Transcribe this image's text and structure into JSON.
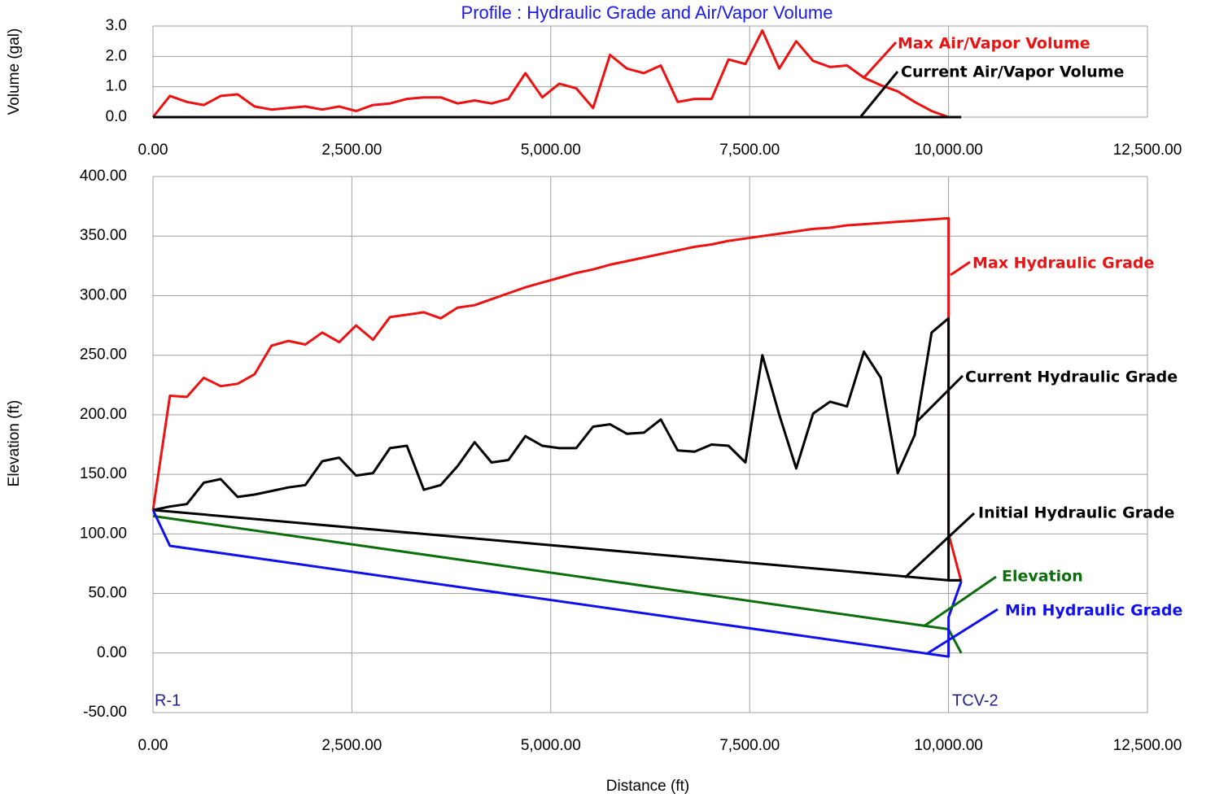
{
  "chart_data": [
    {
      "type": "line",
      "title": "Profile : Hydraulic Grade and Air/Vapor Volume",
      "ylabel": "Volume (gal)",
      "xlim": [
        0,
        12500
      ],
      "ylim": [
        0,
        3
      ],
      "xticks": [
        {
          "value": 0,
          "label": "0.00"
        },
        {
          "value": 2500,
          "label": "2,500.00"
        },
        {
          "value": 5000,
          "label": "5,000.00"
        },
        {
          "value": 7500,
          "label": "7,500.00"
        },
        {
          "value": 10000,
          "label": "10,000.00"
        },
        {
          "value": 12500,
          "label": "12,500.00"
        }
      ],
      "yticks": [
        {
          "value": 0,
          "label": "0.0"
        },
        {
          "value": 1,
          "label": "1.0"
        },
        {
          "value": 2,
          "label": "2.0"
        },
        {
          "value": 3,
          "label": "3.0"
        }
      ],
      "grid": true,
      "series": [
        {
          "name": "Max Air/Vapor Volume",
          "color": "#ee1111",
          "x": [
            0,
            213,
            426,
            638,
            851,
            1064,
            1277,
            1489,
            1702,
            1915,
            2128,
            2340,
            2553,
            2766,
            2979,
            3191,
            3404,
            3617,
            3830,
            4043,
            4255,
            4468,
            4681,
            4894,
            5106,
            5319,
            5532,
            5745,
            5957,
            6170,
            6383,
            6596,
            6809,
            7021,
            7234,
            7447,
            7660,
            7872,
            8085,
            8298,
            8511,
            8723,
            8936,
            9149,
            9362,
            9574,
            9787,
            10000
          ],
          "values": [
            0,
            0.7,
            0.5,
            0.4,
            0.7,
            0.75,
            0.35,
            0.25,
            0.3,
            0.35,
            0.25,
            0.35,
            0.2,
            0.4,
            0.45,
            0.6,
            0.65,
            0.65,
            0.45,
            0.55,
            0.45,
            0.6,
            1.45,
            0.65,
            1.1,
            0.95,
            0.3,
            2.05,
            1.6,
            1.45,
            1.7,
            0.5,
            0.6,
            0.6,
            1.9,
            1.75,
            2.85,
            1.6,
            2.5,
            1.85,
            1.65,
            1.7,
            1.3,
            1.05,
            0.85,
            0.5,
            0.2,
            0
          ]
        },
        {
          "name": "Current Air/Vapor Volume",
          "color": "#000000",
          "x": [
            0,
            10160
          ],
          "values": [
            0,
            0
          ]
        }
      ]
    },
    {
      "type": "line",
      "ylabel": "Elevation (ft)",
      "xlabel": "Distance (ft)",
      "xlim": [
        0,
        12500
      ],
      "ylim": [
        -50,
        400
      ],
      "xticks": [
        {
          "value": 0,
          "label": "0.00"
        },
        {
          "value": 2500,
          "label": "2,500.00"
        },
        {
          "value": 5000,
          "label": "5,000.00"
        },
        {
          "value": 7500,
          "label": "7,500.00"
        },
        {
          "value": 10000,
          "label": "10,000.00"
        },
        {
          "value": 12500,
          "label": "12,500.00"
        }
      ],
      "yticks": [
        {
          "value": -50,
          "label": "-50.00"
        },
        {
          "value": 0,
          "label": "0.00"
        },
        {
          "value": 50,
          "label": "50.00"
        },
        {
          "value": 100,
          "label": "100.00"
        },
        {
          "value": 150,
          "label": "150.00"
        },
        {
          "value": 200,
          "label": "200.00"
        },
        {
          "value": 250,
          "label": "250.00"
        },
        {
          "value": 300,
          "label": "300.00"
        },
        {
          "value": 350,
          "label": "350.00"
        },
        {
          "value": 400,
          "label": "400.00"
        }
      ],
      "grid": true,
      "annotations": [
        "R-1",
        "TCV-2"
      ],
      "series": [
        {
          "name": "Max Hydraulic Grade",
          "color": "#ee1111",
          "x": [
            0,
            213,
            426,
            638,
            851,
            1064,
            1277,
            1489,
            1702,
            1915,
            2128,
            2340,
            2553,
            2766,
            2979,
            3191,
            3404,
            3617,
            3830,
            4043,
            4255,
            4468,
            4681,
            4894,
            5106,
            5319,
            5532,
            5745,
            5957,
            6170,
            6383,
            6596,
            6809,
            7021,
            7234,
            7447,
            7660,
            7872,
            8085,
            8298,
            8511,
            8723,
            8936,
            9149,
            9362,
            9574,
            9787,
            10000,
            10000,
            10160
          ],
          "values": [
            120,
            216,
            215,
            231,
            224,
            226,
            234,
            258,
            262,
            259,
            269,
            261,
            275,
            263,
            282,
            284,
            286,
            281,
            290,
            292,
            297,
            302,
            307,
            311,
            315,
            319,
            322,
            326,
            329,
            332,
            335,
            338,
            341,
            343,
            346,
            348,
            350,
            352,
            354,
            356,
            357,
            359,
            360,
            361,
            362,
            363,
            364,
            365,
            100,
            60
          ]
        },
        {
          "name": "Current Hydraulic Grade",
          "color": "#000000",
          "x": [
            0,
            213,
            426,
            638,
            851,
            1064,
            1277,
            1489,
            1702,
            1915,
            2128,
            2340,
            2553,
            2766,
            2979,
            3191,
            3404,
            3617,
            3830,
            4043,
            4255,
            4468,
            4681,
            4894,
            5106,
            5319,
            5532,
            5745,
            5957,
            6170,
            6383,
            6596,
            6809,
            7021,
            7234,
            7447,
            7660,
            7872,
            8085,
            8298,
            8511,
            8723,
            8936,
            9149,
            9362,
            9574,
            9787,
            10000,
            10000,
            10160
          ],
          "values": [
            120,
            123,
            125,
            143,
            146,
            131,
            133,
            136,
            139,
            141,
            161,
            164,
            149,
            151,
            172,
            174,
            137,
            141,
            157,
            177,
            160,
            162,
            182,
            174,
            172,
            172,
            190,
            192,
            184,
            185,
            196,
            170,
            169,
            175,
            174,
            160,
            250,
            200,
            155,
            201,
            211,
            207,
            253,
            231,
            151,
            183,
            269,
            281,
            61,
            61
          ]
        },
        {
          "name": "Initial Hydraulic Grade",
          "color": "#000000",
          "x": [
            0,
            10000,
            10160
          ],
          "values": [
            120,
            61,
            61
          ]
        },
        {
          "name": "Elevation",
          "color": "#0a6e0a",
          "x": [
            0,
            10000,
            10160
          ],
          "values": [
            115,
            20,
            0
          ]
        },
        {
          "name": "Min Hydraulic Grade",
          "color": "#1010ee",
          "x": [
            0,
            213,
            10000,
            10000,
            10160
          ],
          "values": [
            120,
            90,
            -3,
            30,
            60
          ]
        }
      ]
    }
  ]
}
